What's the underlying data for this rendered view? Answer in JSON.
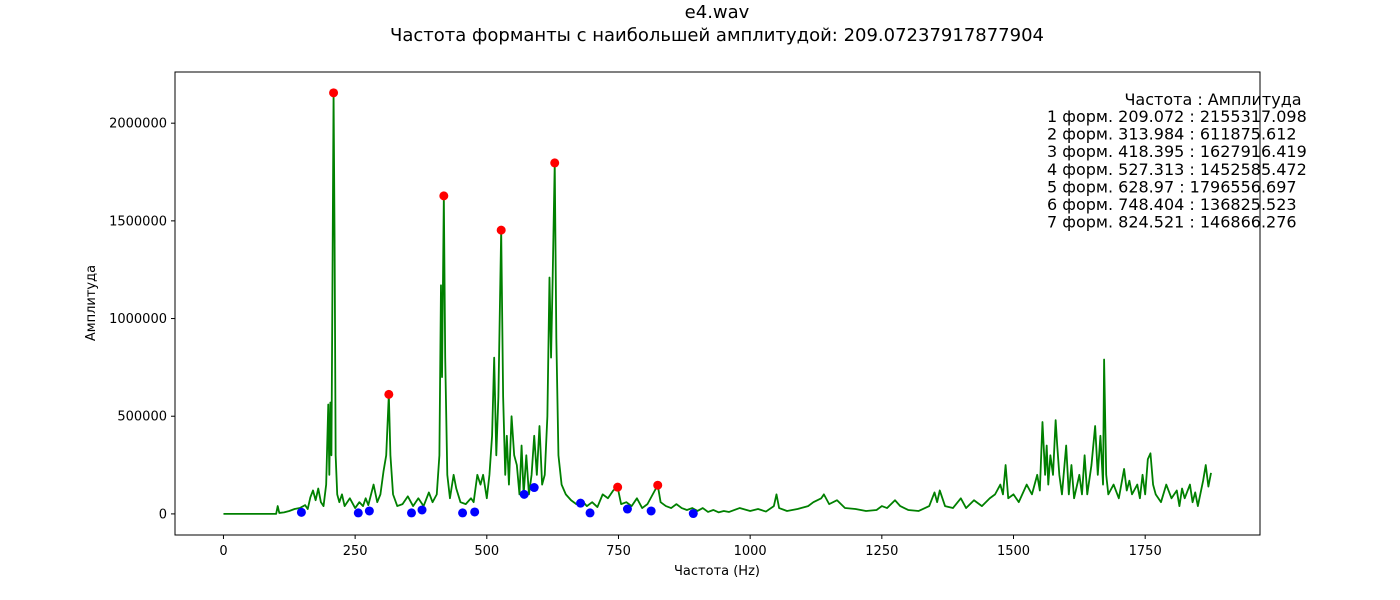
{
  "chart_data": {
    "type": "line",
    "title": "e4.wav",
    "subtitle": "Частота форманты с наибольшей амплитудой: 209.07237917877904",
    "xlabel": "Частота (Hz)",
    "ylabel": "Амплитуда",
    "xlim": [
      -92,
      1968
    ],
    "ylim": [
      -108000,
      2262000
    ],
    "x_ticks": [
      0,
      250,
      500,
      750,
      1000,
      1250,
      1500,
      1750
    ],
    "x_tick_labels": [
      "0",
      "250",
      "500",
      "750",
      "1000",
      "1250",
      "1500",
      "1750"
    ],
    "y_ticks": [
      0,
      500000,
      1000000,
      1500000,
      2000000
    ],
    "y_tick_labels": [
      "0",
      "500000",
      "1000000",
      "1500000",
      "2000000"
    ],
    "grid": false,
    "series": [
      {
        "kind": "line",
        "color": "#008000",
        "points": [
          [
            0,
            0
          ],
          [
            100,
            0
          ],
          [
            103,
            40000
          ],
          [
            106,
            5000
          ],
          [
            115,
            8000
          ],
          [
            125,
            15000
          ],
          [
            135,
            25000
          ],
          [
            145,
            30000
          ],
          [
            155,
            45000
          ],
          [
            160,
            25000
          ],
          [
            165,
            85000
          ],
          [
            170,
            120000
          ],
          [
            175,
            70000
          ],
          [
            180,
            130000
          ],
          [
            185,
            60000
          ],
          [
            190,
            40000
          ],
          [
            195,
            150000
          ],
          [
            199,
            560000
          ],
          [
            201,
            200000
          ],
          [
            203,
            570000
          ],
          [
            205,
            300000
          ],
          [
            207,
            1200000
          ],
          [
            209.07,
            2155317
          ],
          [
            211,
            1400000
          ],
          [
            213,
            300000
          ],
          [
            216,
            100000
          ],
          [
            220,
            60000
          ],
          [
            225,
            100000
          ],
          [
            230,
            40000
          ],
          [
            240,
            80000
          ],
          [
            250,
            30000
          ],
          [
            258,
            60000
          ],
          [
            265,
            40000
          ],
          [
            270,
            80000
          ],
          [
            275,
            45000
          ],
          [
            285,
            150000
          ],
          [
            292,
            60000
          ],
          [
            298,
            100000
          ],
          [
            304,
            220000
          ],
          [
            309,
            300000
          ],
          [
            313.98,
            611876
          ],
          [
            317,
            300000
          ],
          [
            322,
            100000
          ],
          [
            330,
            40000
          ],
          [
            340,
            50000
          ],
          [
            350,
            90000
          ],
          [
            360,
            40000
          ],
          [
            370,
            80000
          ],
          [
            380,
            40000
          ],
          [
            390,
            110000
          ],
          [
            397,
            60000
          ],
          [
            405,
            100000
          ],
          [
            410,
            300000
          ],
          [
            413,
            1170000
          ],
          [
            415,
            700000
          ],
          [
            418.4,
            1627916
          ],
          [
            421,
            800000
          ],
          [
            425,
            200000
          ],
          [
            430,
            80000
          ],
          [
            437,
            200000
          ],
          [
            442,
            130000
          ],
          [
            450,
            60000
          ],
          [
            460,
            50000
          ],
          [
            470,
            80000
          ],
          [
            475,
            60000
          ],
          [
            482,
            200000
          ],
          [
            488,
            150000
          ],
          [
            493,
            200000
          ],
          [
            500,
            80000
          ],
          [
            505,
            200000
          ],
          [
            510,
            400000
          ],
          [
            514,
            800000
          ],
          [
            518,
            300000
          ],
          [
            522,
            600000
          ],
          [
            527.31,
            1452585
          ],
          [
            531,
            600000
          ],
          [
            535,
            200000
          ],
          [
            538,
            400000
          ],
          [
            542,
            150000
          ],
          [
            547,
            500000
          ],
          [
            552,
            300000
          ],
          [
            557,
            250000
          ],
          [
            562,
            100000
          ],
          [
            566,
            350000
          ],
          [
            570,
            100000
          ],
          [
            575,
            300000
          ],
          [
            580,
            100000
          ],
          [
            585,
            200000
          ],
          [
            590,
            400000
          ],
          [
            595,
            200000
          ],
          [
            600,
            450000
          ],
          [
            605,
            150000
          ],
          [
            610,
            200000
          ],
          [
            615,
            500000
          ],
          [
            619,
            1210000
          ],
          [
            622,
            800000
          ],
          [
            625,
            1200000
          ],
          [
            628.97,
            1796557
          ],
          [
            632,
            900000
          ],
          [
            636,
            300000
          ],
          [
            642,
            150000
          ],
          [
            650,
            100000
          ],
          [
            660,
            70000
          ],
          [
            670,
            50000
          ],
          [
            680,
            70000
          ],
          [
            690,
            40000
          ],
          [
            700,
            60000
          ],
          [
            710,
            35000
          ],
          [
            720,
            100000
          ],
          [
            730,
            80000
          ],
          [
            740,
            120000
          ],
          [
            748.4,
            136826
          ],
          [
            755,
            50000
          ],
          [
            765,
            60000
          ],
          [
            775,
            40000
          ],
          [
            785,
            80000
          ],
          [
            795,
            30000
          ],
          [
            805,
            50000
          ],
          [
            815,
            100000
          ],
          [
            824.52,
            146866
          ],
          [
            830,
            60000
          ],
          [
            840,
            40000
          ],
          [
            850,
            30000
          ],
          [
            860,
            50000
          ],
          [
            870,
            30000
          ],
          [
            880,
            20000
          ],
          [
            890,
            30000
          ],
          [
            900,
            15000
          ],
          [
            910,
            30000
          ],
          [
            920,
            10000
          ],
          [
            930,
            20000
          ],
          [
            940,
            8000
          ],
          [
            950,
            15000
          ],
          [
            960,
            10000
          ],
          [
            980,
            30000
          ],
          [
            1000,
            15000
          ],
          [
            1015,
            25000
          ],
          [
            1030,
            12000
          ],
          [
            1045,
            40000
          ],
          [
            1050,
            100000
          ],
          [
            1055,
            30000
          ],
          [
            1070,
            15000
          ],
          [
            1090,
            25000
          ],
          [
            1110,
            40000
          ],
          [
            1120,
            60000
          ],
          [
            1135,
            80000
          ],
          [
            1140,
            100000
          ],
          [
            1150,
            50000
          ],
          [
            1165,
            70000
          ],
          [
            1180,
            30000
          ],
          [
            1200,
            25000
          ],
          [
            1220,
            15000
          ],
          [
            1240,
            20000
          ],
          [
            1250,
            40000
          ],
          [
            1260,
            30000
          ],
          [
            1275,
            70000
          ],
          [
            1285,
            40000
          ],
          [
            1300,
            20000
          ],
          [
            1320,
            15000
          ],
          [
            1340,
            40000
          ],
          [
            1350,
            110000
          ],
          [
            1355,
            60000
          ],
          [
            1360,
            120000
          ],
          [
            1370,
            40000
          ],
          [
            1385,
            30000
          ],
          [
            1400,
            80000
          ],
          [
            1410,
            30000
          ],
          [
            1425,
            70000
          ],
          [
            1440,
            40000
          ],
          [
            1455,
            80000
          ],
          [
            1465,
            100000
          ],
          [
            1475,
            150000
          ],
          [
            1480,
            100000
          ],
          [
            1485,
            250000
          ],
          [
            1490,
            80000
          ],
          [
            1500,
            100000
          ],
          [
            1510,
            60000
          ],
          [
            1525,
            150000
          ],
          [
            1535,
            100000
          ],
          [
            1545,
            200000
          ],
          [
            1550,
            120000
          ],
          [
            1555,
            470000
          ],
          [
            1560,
            200000
          ],
          [
            1563,
            350000
          ],
          [
            1566,
            150000
          ],
          [
            1570,
            300000
          ],
          [
            1575,
            200000
          ],
          [
            1580,
            480000
          ],
          [
            1583,
            350000
          ],
          [
            1587,
            200000
          ],
          [
            1592,
            100000
          ],
          [
            1600,
            350000
          ],
          [
            1605,
            100000
          ],
          [
            1610,
            250000
          ],
          [
            1615,
            80000
          ],
          [
            1625,
            200000
          ],
          [
            1630,
            100000
          ],
          [
            1635,
            300000
          ],
          [
            1640,
            100000
          ],
          [
            1648,
            250000
          ],
          [
            1655,
            450000
          ],
          [
            1660,
            200000
          ],
          [
            1665,
            400000
          ],
          [
            1670,
            150000
          ],
          [
            1672,
            790000
          ],
          [
            1676,
            200000
          ],
          [
            1680,
            100000
          ],
          [
            1690,
            150000
          ],
          [
            1700,
            80000
          ],
          [
            1710,
            230000
          ],
          [
            1715,
            120000
          ],
          [
            1720,
            170000
          ],
          [
            1725,
            100000
          ],
          [
            1735,
            150000
          ],
          [
            1740,
            80000
          ],
          [
            1745,
            200000
          ],
          [
            1750,
            100000
          ],
          [
            1755,
            280000
          ],
          [
            1760,
            310000
          ],
          [
            1765,
            150000
          ],
          [
            1770,
            100000
          ],
          [
            1780,
            60000
          ],
          [
            1790,
            150000
          ],
          [
            1800,
            80000
          ],
          [
            1810,
            120000
          ],
          [
            1815,
            40000
          ],
          [
            1820,
            130000
          ],
          [
            1825,
            80000
          ],
          [
            1835,
            150000
          ],
          [
            1840,
            60000
          ],
          [
            1845,
            110000
          ],
          [
            1850,
            40000
          ],
          [
            1860,
            170000
          ],
          [
            1865,
            250000
          ],
          [
            1870,
            140000
          ],
          [
            1875,
            210000
          ]
        ]
      },
      {
        "kind": "scatter",
        "color": "#ff0000",
        "points": [
          [
            209.072,
            2155317.098
          ],
          [
            313.984,
            611875.612
          ],
          [
            418.395,
            1627916.419
          ],
          [
            527.313,
            1452585.472
          ],
          [
            628.97,
            1796556.697
          ],
          [
            748.404,
            136825.523
          ],
          [
            824.521,
            146866.276
          ]
        ]
      },
      {
        "kind": "scatter",
        "color": "#0000ff",
        "points": [
          [
            148,
            8000
          ],
          [
            256,
            5000
          ],
          [
            277,
            15000
          ],
          [
            357,
            5000
          ],
          [
            377,
            20000
          ],
          [
            454,
            5000
          ],
          [
            477,
            10000
          ],
          [
            571,
            100000
          ],
          [
            590,
            135000
          ],
          [
            678,
            55000
          ],
          [
            696,
            5000
          ],
          [
            767,
            25000
          ],
          [
            812,
            15000
          ],
          [
            892,
            2000
          ]
        ]
      }
    ],
    "legend": {
      "placement": "top-right",
      "header": "Частота : Амплитуда",
      "lines": [
        "1 форм. 209.072 : 2155317.098",
        "2 форм. 313.984 : 611875.612",
        "3 форм. 418.395 : 1627916.419",
        "4 форм. 527.313 : 1452585.472",
        "5 форм. 628.97 : 1796556.697",
        "6 форм. 748.404 : 136825.523",
        "7 форм. 824.521 : 146866.276"
      ]
    }
  }
}
